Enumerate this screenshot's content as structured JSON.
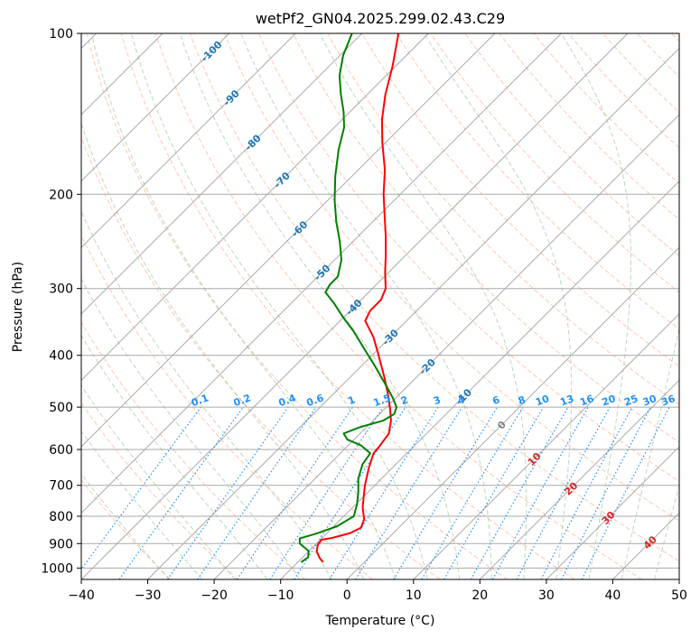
{
  "chart_data": {
    "type": "line",
    "title": "wetPf2_GN04.2025.299.02.43.C29",
    "xlabel": "Temperature (°C)",
    "ylabel": "Pressure (hPa)",
    "xlim": [
      -40,
      50
    ],
    "ylim": [
      1050,
      100
    ],
    "x_ticks": [
      -40,
      -30,
      -20,
      -10,
      0,
      10,
      20,
      30,
      40,
      50
    ],
    "x_tick_labels": [
      "−40",
      "−30",
      "−20",
      "−10",
      "0",
      "10",
      "20",
      "30",
      "40",
      "50"
    ],
    "y_ticks": [
      1000,
      900,
      800,
      700,
      600,
      500,
      400,
      300,
      200,
      100
    ],
    "y_tick_labels": [
      "1000",
      "900",
      "800",
      "700",
      "600",
      "500",
      "400",
      "300",
      "200",
      "100"
    ],
    "skew_degrees": 45,
    "series": [
      {
        "name": "temperature",
        "color": "#ff0000",
        "points": [
          {
            "p": 975,
            "t": -6.2
          },
          {
            "p": 955,
            "t": -7.5
          },
          {
            "p": 930,
            "t": -8.8
          },
          {
            "p": 905,
            "t": -9.6
          },
          {
            "p": 885,
            "t": -9.8
          },
          {
            "p": 878,
            "t": -8.5
          },
          {
            "p": 860,
            "t": -6.5
          },
          {
            "p": 840,
            "t": -5.7
          },
          {
            "p": 810,
            "t": -6.5
          },
          {
            "p": 770,
            "t": -8.5
          },
          {
            "p": 700,
            "t": -11.5
          },
          {
            "p": 650,
            "t": -13.5
          },
          {
            "p": 610,
            "t": -15.0
          },
          {
            "p": 590,
            "t": -15.2
          },
          {
            "p": 560,
            "t": -15.7
          },
          {
            "p": 530,
            "t": -17.3
          },
          {
            "p": 500,
            "t": -19.5
          },
          {
            "p": 470,
            "t": -22.0
          },
          {
            "p": 440,
            "t": -24.8
          },
          {
            "p": 400,
            "t": -29.0
          },
          {
            "p": 370,
            "t": -32.5
          },
          {
            "p": 345,
            "t": -36.2
          },
          {
            "p": 330,
            "t": -37.0
          },
          {
            "p": 315,
            "t": -37.0
          },
          {
            "p": 300,
            "t": -38.0
          },
          {
            "p": 280,
            "t": -40.5
          },
          {
            "p": 260,
            "t": -43.0
          },
          {
            "p": 240,
            "t": -45.8
          },
          {
            "p": 220,
            "t": -49.0
          },
          {
            "p": 200,
            "t": -52.5
          },
          {
            "p": 180,
            "t": -56.0
          },
          {
            "p": 160,
            "t": -60.5
          },
          {
            "p": 145,
            "t": -64.0
          },
          {
            "p": 130,
            "t": -67.3
          },
          {
            "p": 115,
            "t": -70.5
          },
          {
            "p": 100,
            "t": -74.5
          }
        ]
      },
      {
        "name": "dewpoint",
        "color": "#008000",
        "points": [
          {
            "p": 975,
            "t": -9.5
          },
          {
            "p": 955,
            "t": -9.2
          },
          {
            "p": 930,
            "t": -10.0
          },
          {
            "p": 900,
            "t": -12.5
          },
          {
            "p": 880,
            "t": -13.3
          },
          {
            "p": 862,
            "t": -11.5
          },
          {
            "p": 835,
            "t": -9.5
          },
          {
            "p": 800,
            "t": -8.5
          },
          {
            "p": 760,
            "t": -9.8
          },
          {
            "p": 720,
            "t": -11.5
          },
          {
            "p": 680,
            "t": -13.5
          },
          {
            "p": 640,
            "t": -15.0
          },
          {
            "p": 610,
            "t": -15.5
          },
          {
            "p": 590,
            "t": -18.0
          },
          {
            "p": 575,
            "t": -21.0
          },
          {
            "p": 560,
            "t": -22.5
          },
          {
            "p": 545,
            "t": -21.0
          },
          {
            "p": 530,
            "t": -18.5
          },
          {
            "p": 515,
            "t": -17.8
          },
          {
            "p": 500,
            "t": -18.5
          },
          {
            "p": 480,
            "t": -20.5
          },
          {
            "p": 450,
            "t": -24.0
          },
          {
            "p": 420,
            "t": -27.8
          },
          {
            "p": 390,
            "t": -32.0
          },
          {
            "p": 360,
            "t": -36.5
          },
          {
            "p": 340,
            "t": -40.0
          },
          {
            "p": 320,
            "t": -43.5
          },
          {
            "p": 305,
            "t": -46.5
          },
          {
            "p": 295,
            "t": -47.0
          },
          {
            "p": 285,
            "t": -47.0
          },
          {
            "p": 265,
            "t": -49.0
          },
          {
            "p": 245,
            "t": -52.0
          },
          {
            "p": 225,
            "t": -55.5
          },
          {
            "p": 205,
            "t": -59.0
          },
          {
            "p": 185,
            "t": -62.5
          },
          {
            "p": 165,
            "t": -66.0
          },
          {
            "p": 150,
            "t": -68.5
          },
          {
            "p": 140,
            "t": -71.0
          },
          {
            "p": 130,
            "t": -74.0
          },
          {
            "p": 120,
            "t": -77.0
          },
          {
            "p": 110,
            "t": -79.5
          },
          {
            "p": 100,
            "t": -81.5
          }
        ]
      }
    ],
    "isotherm_labels": [
      {
        "text": "-100",
        "t": -100,
        "p": 108
      },
      {
        "text": "-90",
        "t": -90,
        "p": 132
      },
      {
        "text": "-80",
        "t": -80,
        "p": 160
      },
      {
        "text": "-70",
        "t": -70,
        "p": 188
      },
      {
        "text": "-60",
        "t": -60,
        "p": 232
      },
      {
        "text": "-50",
        "t": -50,
        "p": 280
      },
      {
        "text": "-40",
        "t": -40,
        "p": 325
      },
      {
        "text": "-30",
        "t": -30,
        "p": 370
      },
      {
        "text": "-20",
        "t": -20,
        "p": 420
      },
      {
        "text": "-10",
        "t": -10,
        "p": 478
      },
      {
        "text": "0",
        "t": 0,
        "p": 540
      },
      {
        "text": "10",
        "t": 10,
        "p": 625
      },
      {
        "text": "20",
        "t": 20,
        "p": 710
      },
      {
        "text": "30",
        "t": 30,
        "p": 805
      },
      {
        "text": "40",
        "t": 40,
        "p": 895
      }
    ],
    "mixing_ratio_labels": [
      "0.1",
      "0.2",
      "0.4",
      "0.6",
      "1",
      "1.5",
      "2",
      "3",
      "4",
      "6",
      "8",
      "10",
      "13",
      "16",
      "20",
      "25",
      "30",
      "36"
    ],
    "mixing_ratio_label_pressure": 500,
    "mixing_ratio_values": [
      0.1,
      0.2,
      0.4,
      0.6,
      1,
      1.5,
      2,
      3,
      4,
      6,
      8,
      10,
      13,
      16,
      20,
      25,
      30,
      36
    ],
    "colors": {
      "temperature": "#ff0000",
      "dewpoint": "#008000",
      "isotherm": "#a9a9a9",
      "dry_adiabat": "#ffa07a",
      "moist_adiabat": "#8fbc8f",
      "mixing_ratio": "#1e90ff",
      "grid": "#a9a9a9",
      "isotherm_label_cold": "#1f77b4",
      "isotherm_label_zero": "#808080",
      "isotherm_label_warm": "#d62728"
    }
  }
}
